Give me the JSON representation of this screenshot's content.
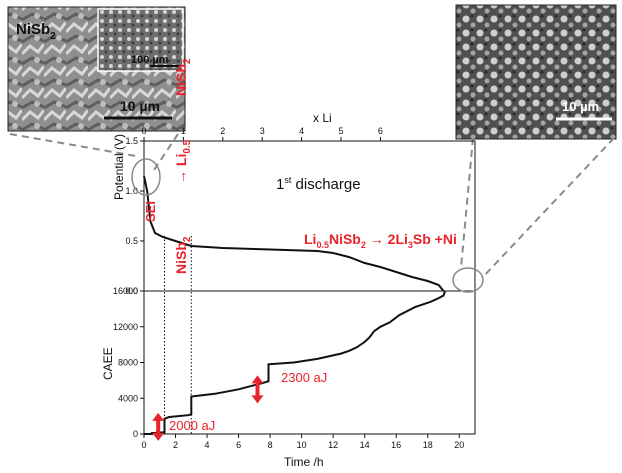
{
  "chart_data": [
    {
      "type": "line",
      "title": "",
      "ylabel": "Potential (V)",
      "xlabel": "",
      "top_axis_label": "x Li",
      "top_ticks": [
        "0",
        "1",
        "2",
        "3",
        "4",
        "5",
        "6"
      ],
      "top_tick_times": [
        0,
        2.5,
        5.0,
        7.5,
        10.0,
        12.5,
        15.0
      ],
      "yticks": [
        "0.0",
        "0.5",
        "1.0",
        "1.5"
      ],
      "ylim": [
        0,
        1.5
      ],
      "xlim": [
        0,
        21
      ],
      "series": [
        {
          "values": [
            [
              0,
              1.15
            ],
            [
              0.2,
              1.0
            ],
            [
              0.4,
              0.7
            ],
            [
              0.7,
              0.58
            ],
            [
              1.2,
              0.54
            ],
            [
              2.0,
              0.5
            ],
            [
              3.0,
              0.45
            ],
            [
              5,
              0.43
            ],
            [
              7,
              0.42
            ],
            [
              9,
              0.41
            ],
            [
              11,
              0.4
            ],
            [
              12,
              0.38
            ],
            [
              13,
              0.34
            ],
            [
              14,
              0.28
            ],
            [
              15,
              0.24
            ],
            [
              16,
              0.19
            ],
            [
              17,
              0.14
            ],
            [
              18,
              0.1
            ],
            [
              18.7,
              0.06
            ],
            [
              19.0,
              0.0
            ]
          ]
        }
      ],
      "texts": {
        "discharge": "1",
        "discharge_sup": "st",
        "discharge_rest": " discharge",
        "sei": "SEI",
        "reaction1_a": "NiSb",
        "reaction1_a_sub": "2",
        "reaction1_arrow": " → Li",
        "reaction1_li_sub": "0.5",
        "reaction1_b": "NiSb",
        "reaction1_b_sub": "2",
        "reaction2_li": "Li",
        "reaction2_li_sub": "0.5",
        "reaction2_mid": "NiSb",
        "reaction2_mid_sub": "2",
        "reaction2_arrow": " → 2Li",
        "reaction2_li3_sub": "3",
        "reaction2_end": "Sb +Ni"
      }
    },
    {
      "type": "line",
      "title": "",
      "ylabel": "CAEE",
      "xlabel": "Time /h",
      "xticks": [
        "0",
        "2",
        "4",
        "6",
        "8",
        "10",
        "12",
        "14",
        "16",
        "18",
        "20"
      ],
      "xlim": [
        0,
        21
      ],
      "yticks": [
        "0",
        "4000",
        "8000",
        "12000",
        "16000"
      ],
      "ylim": [
        0,
        16000
      ],
      "series": [
        {
          "values": [
            [
              0,
              0
            ],
            [
              0.5,
              0
            ],
            [
              0.5,
              100
            ],
            [
              1.3,
              200
            ],
            [
              1.3,
              1700
            ],
            [
              1.6,
              1900
            ],
            [
              2.8,
              2100
            ],
            [
              3.0,
              2200
            ],
            [
              3.0,
              4200
            ],
            [
              4.5,
              4500
            ],
            [
              6,
              5000
            ],
            [
              7.5,
              5700
            ],
            [
              7.9,
              5900
            ],
            [
              7.9,
              7800
            ],
            [
              9.5,
              8000
            ],
            [
              11,
              8400
            ],
            [
              12,
              8800
            ],
            [
              12.5,
              9000
            ],
            [
              13,
              9300
            ],
            [
              13.5,
              9700
            ],
            [
              14,
              10300
            ],
            [
              14.3,
              10800
            ],
            [
              14.6,
              11500
            ],
            [
              15,
              12000
            ],
            [
              15.6,
              12500
            ],
            [
              16.2,
              13300
            ],
            [
              17.2,
              14200
            ],
            [
              18.2,
              14800
            ],
            [
              18.7,
              15200
            ],
            [
              19,
              15500
            ],
            [
              19.1,
              16000
            ]
          ]
        }
      ],
      "annotations": [
        "2000 aJ",
        "2300 aJ"
      ],
      "annotation_points": [
        [
          0.9,
          800
        ],
        [
          7.2,
          5000
        ]
      ],
      "event_lines_time": [
        1.3,
        3.0
      ]
    }
  ],
  "micrographs": {
    "left_label": "NiSb",
    "left_label_sub": "2",
    "left_inset_scale": "100 µm",
    "left_scale": "10 µm",
    "right_scale": "10 µm"
  },
  "colors": {
    "red": "#e8232b",
    "line": "#111111",
    "dashed": "#8a8a8a"
  }
}
